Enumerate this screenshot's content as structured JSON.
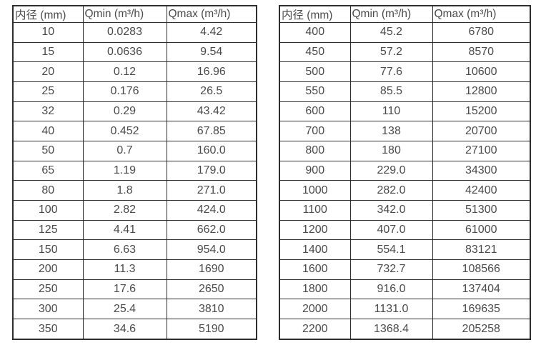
{
  "page": {
    "background_color": "#ffffff",
    "text_color": "#4a4a4a",
    "border_color": "#2e2e2e"
  },
  "chart_data": [
    {
      "type": "table",
      "title": "",
      "columns": [
        "内径 (mm)",
        "Qmin (m³/h)",
        "Qmax (m³/h)"
      ],
      "rows": [
        [
          "10",
          "0.0283",
          "4.42"
        ],
        [
          "15",
          "0.0636",
          "9.54"
        ],
        [
          "20",
          "0.12",
          "16.96"
        ],
        [
          "25",
          "0.176",
          "26.5"
        ],
        [
          "32",
          "0.29",
          "43.42"
        ],
        [
          "40",
          "0.452",
          "67.85"
        ],
        [
          "50",
          "0.7",
          "160.0"
        ],
        [
          "65",
          "1.19",
          "179.0"
        ],
        [
          "80",
          "1.8",
          "271.0"
        ],
        [
          "100",
          "2.82",
          "424.0"
        ],
        [
          "125",
          "4.41",
          "662.0"
        ],
        [
          "150",
          "6.63",
          "954.0"
        ],
        [
          "200",
          "11.3",
          "1690"
        ],
        [
          "250",
          "17.6",
          "2650"
        ],
        [
          "300",
          "25.4",
          "3810"
        ],
        [
          "350",
          "34.6",
          "5190"
        ]
      ]
    },
    {
      "type": "table",
      "title": "",
      "columns": [
        "内径 (mm)",
        "Qmin (m³/h)",
        "Qmax (m³/h)"
      ],
      "rows": [
        [
          "400",
          "45.2",
          "6780"
        ],
        [
          "450",
          "57.2",
          "8570"
        ],
        [
          "500",
          "77.6",
          "10600"
        ],
        [
          "550",
          "85.5",
          "12800"
        ],
        [
          "600",
          "110",
          "15200"
        ],
        [
          "700",
          "138",
          "20700"
        ],
        [
          "800",
          "180",
          "27100"
        ],
        [
          "900",
          "229.0",
          "34300"
        ],
        [
          "1000",
          "282.0",
          "42400"
        ],
        [
          "1100",
          "342.0",
          "51300"
        ],
        [
          "1200",
          "407.0",
          "61000"
        ],
        [
          "1400",
          "554.1",
          "83121"
        ],
        [
          "1600",
          "732.7",
          "108566"
        ],
        [
          "1800",
          "916.0",
          "137404"
        ],
        [
          "2000",
          "1131.0",
          "169635"
        ],
        [
          "2200",
          "1368.4",
          "205258"
        ]
      ]
    }
  ]
}
